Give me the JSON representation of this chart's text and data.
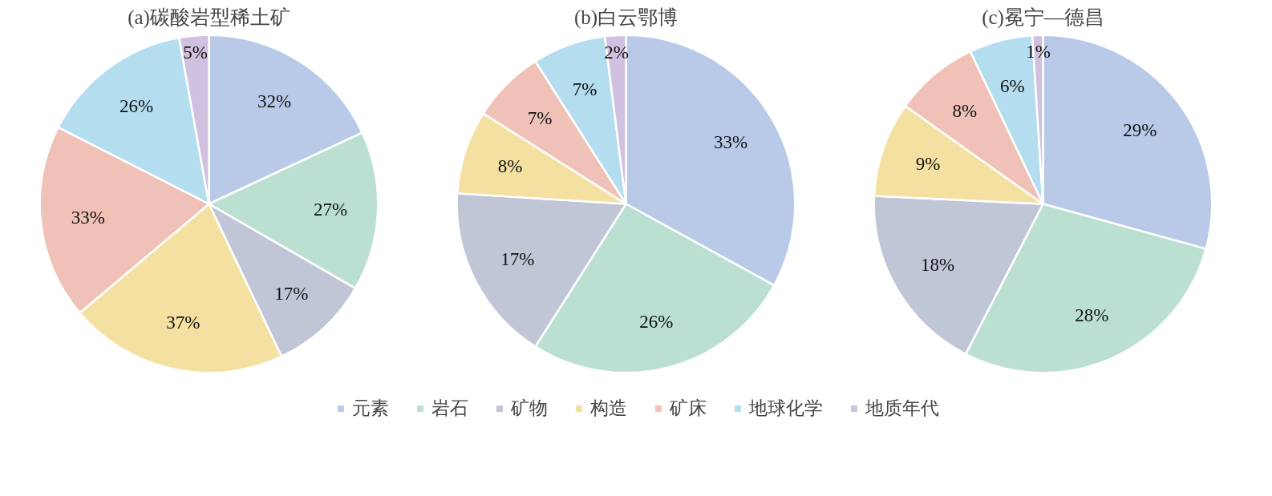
{
  "chart_data": [
    {
      "type": "pie",
      "title": "(a)碳酸岩型稀土矿",
      "categories": [
        "元素",
        "岩石",
        "矿物",
        "构造",
        "矿床",
        "地球化学",
        "地质年代"
      ],
      "values": [
        32,
        27,
        17,
        37,
        33,
        26,
        5
      ],
      "value_labels": [
        "32%",
        "27%",
        "17%",
        "37%",
        "33%",
        "26%",
        "5%"
      ],
      "colors": [
        "#b9cae9",
        "#bbe0d1",
        "#c1c6d6",
        "#f4e0a1",
        "#f0c1b6",
        "#b4ddf0",
        "#d1c1e0"
      ],
      "legend": "bottom"
    },
    {
      "type": "pie",
      "title": "(b)白云鄂博",
      "categories": [
        null,
        null,
        null,
        null,
        null,
        null,
        null
      ],
      "values": [
        33,
        26,
        17,
        8,
        7,
        7,
        2
      ],
      "value_labels": [
        "33%",
        "26%",
        "17%",
        "8%",
        "7%",
        "7%",
        "2%"
      ],
      "colors": [
        "#b9cae9",
        "#bbe0d1",
        "#c1c6d6",
        "#f4e0a1",
        "#f0c1b6",
        "#b4ddf0",
        "#d1c1e0"
      ]
    },
    {
      "type": "pie",
      "title": "(c)冕宁—德昌",
      "categories": [
        null,
        null,
        null,
        null,
        null,
        null,
        null
      ],
      "values": [
        29,
        28,
        18,
        9,
        8,
        6,
        1
      ],
      "value_labels": [
        "29%",
        "28%",
        "18%",
        "9%",
        "8%",
        "6%",
        "1%"
      ],
      "colors": [
        "#b9cae9",
        "#bbe0d1",
        "#c1c6d6",
        "#f4e0a1",
        "#f0c1b6",
        "#b4ddf0",
        "#d1c1e0"
      ]
    }
  ]
}
